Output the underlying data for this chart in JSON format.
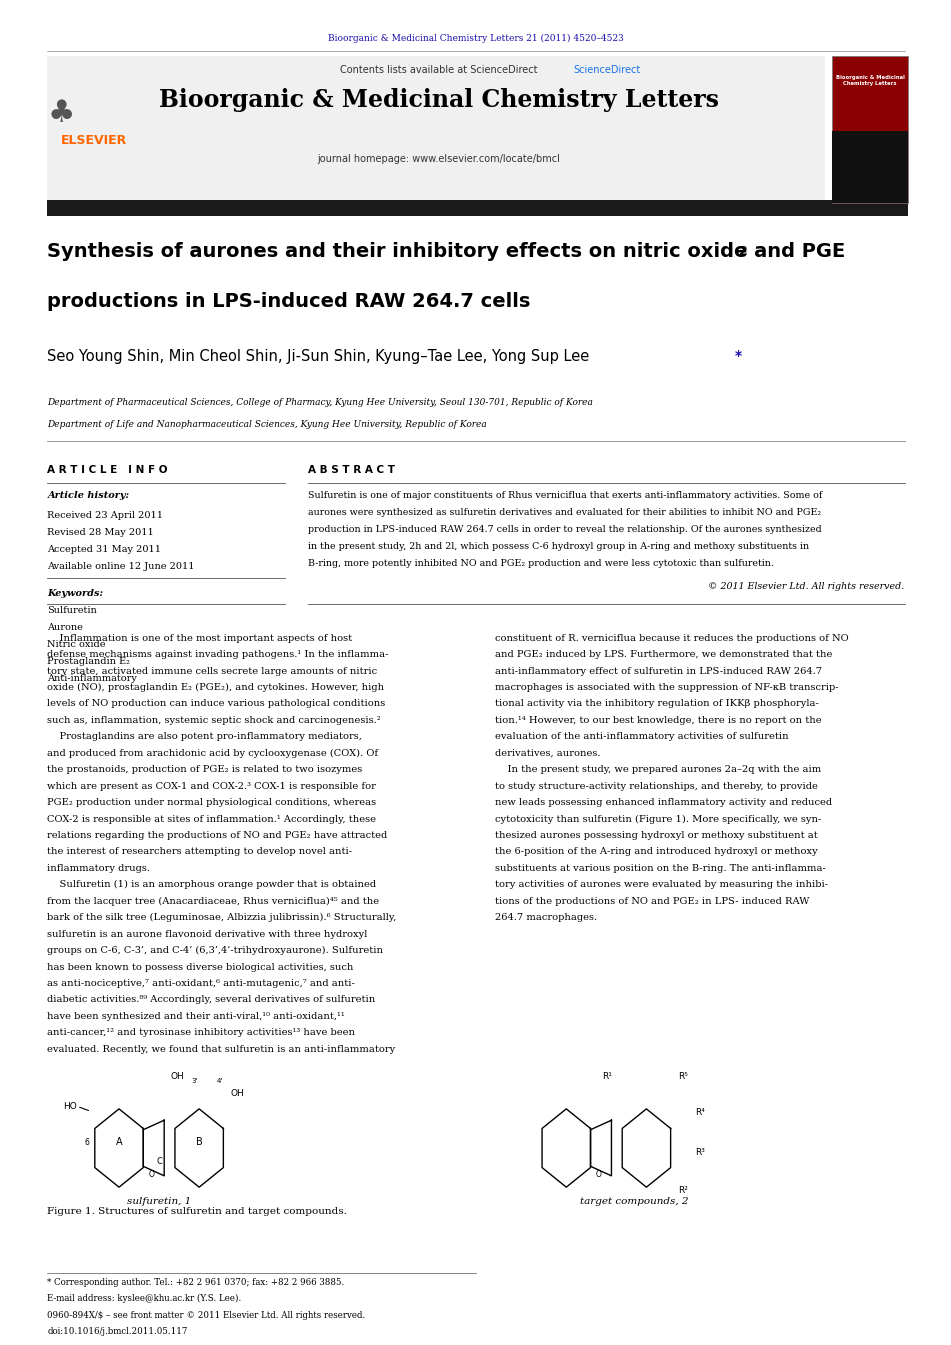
{
  "page_width": 9.92,
  "page_height": 13.23,
  "bg_color": "#ffffff",
  "top_journal_ref": "Bioorganic & Medicinal Chemistry Letters 21 (2011) 4520–4523",
  "journal_name": "Bioorganic & Medicinal Chemistry Letters",
  "contents_text": "Contents lists available at ScienceDirect",
  "homepage_text": "journal homepage: www.elsevier.com/locate/bmcl",
  "article_title_line1": "Synthesis of aurones and their inhibitory effects on nitric oxide and PGE",
  "article_title_sub": "2",
  "article_title_line2": "productions in LPS-induced RAW 264.7 cells",
  "authors": "Seo Young Shin, Min Cheol Shin, Ji-Sun Shin, Kyung–Tae Lee, Yong Sup Lee",
  "affil1": "Department of Pharmaceutical Sciences, College of Pharmacy, Kyung Hee University, Seoul 130-701, Republic of Korea",
  "affil2": "Department of Life and Nanopharmaceutical Sciences, Kyung Hee University, Republic of Korea",
  "article_info_header": "A R T I C L E   I N F O",
  "abstract_header": "A B S T R A C T",
  "article_history_label": "Article history:",
  "received": "Received 23 April 2011",
  "revised": "Revised 28 May 2011",
  "accepted": "Accepted 31 May 2011",
  "available": "Available online 12 June 2011",
  "keywords_label": "Keywords:",
  "keywords": [
    "Sulfuretin",
    "Aurone",
    "Nitric oxide",
    "Prostaglandin E₂",
    "Anti-inflammatory"
  ],
  "abstract_lines": [
    "Sulfuretin is one of major constituents of Rhus verniciflua that exerts anti-inflammatory activities. Some of",
    "aurones were synthesized as sulfuretin derivatives and evaluated for their abilities to inhibit NO and PGE₂",
    "production in LPS-induced RAW 264.7 cells in order to reveal the relationship. Of the aurones synthesized",
    "in the present study, 2h and 2l, which possess C-6 hydroxyl group in A-ring and methoxy substituents in",
    "B-ring, more potently inhibited NO and PGE₂ production and were less cytotoxic than sulfuretin."
  ],
  "copyright": "© 2011 Elsevier Ltd. All rights reserved.",
  "left_col_lines": [
    "    Inflammation is one of the most important aspects of host",
    "defense mechanisms against invading pathogens.¹ In the inflamma-",
    "tory state, activated immune cells secrete large amounts of nitric",
    "oxide (NO), prostaglandin E₂ (PGE₂), and cytokines. However, high",
    "levels of NO production can induce various pathological conditions",
    "such as, inflammation, systemic septic shock and carcinogenesis.²",
    "    Prostaglandins are also potent pro-inflammatory mediators,",
    "and produced from arachidonic acid by cyclooxygenase (COX). Of",
    "the prostanoids, production of PGE₂ is related to two isozymes",
    "which are present as COX-1 and COX-2.³ COX-1 is responsible for",
    "PGE₂ production under normal physiological conditions, whereas",
    "COX-2 is responsible at sites of inflammation.¹ Accordingly, these",
    "relations regarding the productions of NO and PGE₂ have attracted",
    "the interest of researchers attempting to develop novel anti-",
    "inflammatory drugs.",
    "    Sulfuretin (1) is an amorphous orange powder that is obtained",
    "from the lacquer tree (Anacardiaceae, Rhus verniciflua)⁴⁵ and the",
    "bark of the silk tree (Leguminosae, Albizzia julibrissin).⁶ Structurally,",
    "sulfuretin is an aurone flavonoid derivative with three hydroxyl",
    "groups on C-6, C-3’, and C-4’ (6,3’,4’-trihydroxyaurone). Sulfuretin",
    "has been known to possess diverse biological activities, such",
    "as anti-nociceptive,⁷ anti-oxidant,⁶ anti-mutagenic,⁷ and anti-",
    "diabetic activities.⁸⁹ Accordingly, several derivatives of sulfuretin",
    "have been synthesized and their anti-viral,¹⁰ anti-oxidant,¹¹",
    "anti-cancer,¹² and tyrosinase inhibitory activities¹³ have been",
    "evaluated. Recently, we found that sulfuretin is an anti-inflammatory"
  ],
  "right_col_lines": [
    "constituent of R. verniciflua because it reduces the productions of NO",
    "and PGE₂ induced by LPS. Furthermore, we demonstrated that the",
    "anti-inflammatory effect of sulfuretin in LPS-induced RAW 264.7",
    "macrophages is associated with the suppression of NF-κB transcrip-",
    "tional activity via the inhibitory regulation of IKKβ phosphoryla-",
    "tion.¹⁴ However, to our best knowledge, there is no report on the",
    "evaluation of the anti-inflammatory activities of sulfuretin",
    "derivatives, aurones.",
    "    In the present study, we prepared aurones 2a–2q with the aim",
    "to study structure-activity relationships, and thereby, to provide",
    "new leads possessing enhanced inflammatory activity and reduced",
    "cytotoxicity than sulfuretin (Figure 1). More specifically, we syn-",
    "thesized aurones possessing hydroxyl or methoxy substituent at",
    "the 6-position of the A-ring and introduced hydroxyl or methoxy",
    "substituents at various position on the B-ring. The anti-inflamma-",
    "tory activities of aurones were evaluated by measuring the inhibi-",
    "tions of the productions of NO and PGE₂ in LPS- induced RAW",
    "264.7 macrophages."
  ],
  "figure_caption": "Figure 1. Structures of sulfuretin and target compounds.",
  "figure_label_sulfuretin": "sulfuretin, 1",
  "figure_label_target": "target compounds, 2",
  "footer_note": "* Corresponding author. Tel.: +82 2 961 0370; fax: +82 2 966 3885.",
  "footer_email": "E-mail address: kyslee@khu.ac.kr (Y.S. Lee).",
  "footer_issn": "0960-894X/$ – see front matter © 2011 Elsevier Ltd. All rights reserved.",
  "footer_doi": "doi:10.1016/j.bmcl.2011.05.117",
  "header_color": "#1a0dab",
  "sciencedirect_color": "#1a73e8",
  "elsevier_color": "#ff6600",
  "thick_bar_color": "#1a1a1a"
}
